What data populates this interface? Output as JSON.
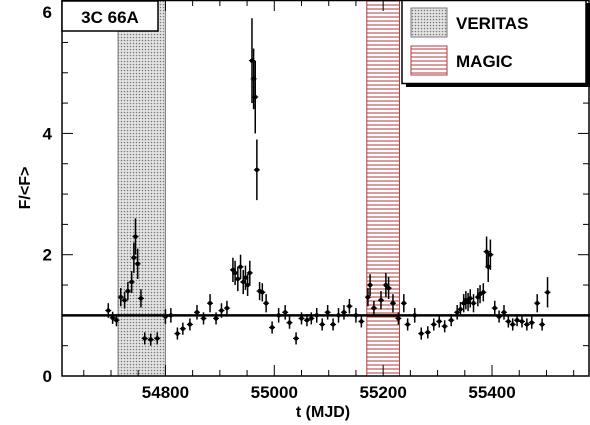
{
  "chart_data": {
    "type": "scatter",
    "source_label": "3C 66A",
    "xlabel": "t (MJD)",
    "ylabel": "F/<F>",
    "xlim": [
      54610,
      55580
    ],
    "ylim": [
      0,
      6.2
    ],
    "x_ticks": [
      54800,
      55000,
      55200,
      55400
    ],
    "y_ticks": [
      0,
      2,
      4,
      6
    ],
    "reference_line": 1.0,
    "grid": false,
    "legend_placement": "top-right",
    "bands": [
      {
        "name": "VERITAS",
        "x_range": [
          54713,
          54800
        ],
        "fill": "dotted-gray",
        "color": "#7a7a7a"
      },
      {
        "name": "MAGIC",
        "x_range": [
          55170,
          55230
        ],
        "fill": "horizontal-hatch",
        "color": "#b23a3a"
      }
    ],
    "points": [
      [
        54695,
        1.08,
        0.12
      ],
      [
        54703,
        0.96,
        0.1
      ],
      [
        54710,
        0.92,
        0.1
      ],
      [
        54718,
        1.3,
        0.15
      ],
      [
        54725,
        1.25,
        0.14
      ],
      [
        54731,
        1.4,
        0.15
      ],
      [
        54738,
        1.55,
        0.18
      ],
      [
        54742,
        1.95,
        0.25
      ],
      [
        54745,
        2.3,
        0.3
      ],
      [
        54749,
        1.85,
        0.25
      ],
      [
        54755,
        1.28,
        0.15
      ],
      [
        54762,
        0.62,
        0.1
      ],
      [
        54773,
        0.6,
        0.1
      ],
      [
        54785,
        0.62,
        0.1
      ],
      [
        54800,
        0.98,
        0.12
      ],
      [
        54810,
        1.0,
        0.12
      ],
      [
        54822,
        0.7,
        0.1
      ],
      [
        54832,
        0.78,
        0.1
      ],
      [
        54845,
        0.85,
        0.1
      ],
      [
        54858,
        1.05,
        0.12
      ],
      [
        54870,
        0.95,
        0.1
      ],
      [
        54882,
        1.2,
        0.15
      ],
      [
        54893,
        0.95,
        0.1
      ],
      [
        54903,
        1.08,
        0.12
      ],
      [
        54913,
        1.12,
        0.12
      ],
      [
        54924,
        1.75,
        0.2
      ],
      [
        54928,
        1.7,
        0.2
      ],
      [
        54933,
        1.6,
        0.2
      ],
      [
        54938,
        1.8,
        0.2
      ],
      [
        54943,
        1.55,
        0.2
      ],
      [
        54947,
        1.62,
        0.2
      ],
      [
        54951,
        1.5,
        0.18
      ],
      [
        54955,
        1.7,
        0.2
      ],
      [
        54959,
        5.2,
        0.7
      ],
      [
        54962,
        4.9,
        0.5
      ],
      [
        54965,
        4.6,
        0.6
      ],
      [
        54968,
        3.4,
        0.5
      ],
      [
        54973,
        1.4,
        0.15
      ],
      [
        54978,
        1.38,
        0.15
      ],
      [
        54985,
        1.2,
        0.15
      ],
      [
        54996,
        0.8,
        0.1
      ],
      [
        55008,
        1.0,
        0.12
      ],
      [
        55020,
        1.05,
        0.12
      ],
      [
        55028,
        0.88,
        0.1
      ],
      [
        55040,
        0.62,
        0.1
      ],
      [
        55050,
        0.95,
        0.1
      ],
      [
        55060,
        0.92,
        0.1
      ],
      [
        55068,
        0.95,
        0.1
      ],
      [
        55078,
        1.0,
        0.12
      ],
      [
        55088,
        0.85,
        0.1
      ],
      [
        55098,
        1.05,
        0.12
      ],
      [
        55108,
        0.85,
        0.1
      ],
      [
        55118,
        1.0,
        0.12
      ],
      [
        55128,
        1.05,
        0.12
      ],
      [
        55138,
        1.15,
        0.12
      ],
      [
        55150,
        1.0,
        0.12
      ],
      [
        55160,
        0.9,
        0.1
      ],
      [
        55172,
        1.3,
        0.15
      ],
      [
        55176,
        1.5,
        0.18
      ],
      [
        55183,
        1.12,
        0.12
      ],
      [
        55196,
        1.25,
        0.15
      ],
      [
        55205,
        1.5,
        0.2
      ],
      [
        55210,
        1.45,
        0.18
      ],
      [
        55218,
        1.2,
        0.15
      ],
      [
        55228,
        0.95,
        0.1
      ],
      [
        55238,
        1.2,
        0.15
      ],
      [
        55245,
        0.85,
        0.1
      ],
      [
        55258,
        1.0,
        0.12
      ],
      [
        55270,
        0.7,
        0.1
      ],
      [
        55282,
        0.72,
        0.1
      ],
      [
        55293,
        0.85,
        0.1
      ],
      [
        55303,
        0.9,
        0.1
      ],
      [
        55313,
        0.82,
        0.1
      ],
      [
        55325,
        0.92,
        0.1
      ],
      [
        55336,
        1.05,
        0.12
      ],
      [
        55342,
        1.1,
        0.12
      ],
      [
        55348,
        1.2,
        0.15
      ],
      [
        55352,
        1.25,
        0.15
      ],
      [
        55356,
        1.22,
        0.15
      ],
      [
        55360,
        1.28,
        0.15
      ],
      [
        55366,
        1.2,
        0.15
      ],
      [
        55374,
        1.3,
        0.15
      ],
      [
        55378,
        1.35,
        0.15
      ],
      [
        55384,
        1.38,
        0.15
      ],
      [
        55390,
        2.05,
        0.25
      ],
      [
        55393,
        1.8,
        0.25
      ],
      [
        55397,
        2.0,
        0.25
      ],
      [
        55405,
        1.12,
        0.12
      ],
      [
        55413,
        0.98,
        0.1
      ],
      [
        55422,
        1.05,
        0.12
      ],
      [
        55430,
        0.9,
        0.1
      ],
      [
        55438,
        0.85,
        0.1
      ],
      [
        55446,
        0.92,
        0.1
      ],
      [
        55455,
        0.9,
        0.1
      ],
      [
        55464,
        0.85,
        0.1
      ],
      [
        55473,
        0.88,
        0.1
      ],
      [
        55483,
        1.2,
        0.15
      ],
      [
        55492,
        0.85,
        0.1
      ],
      [
        55502,
        1.38,
        0.25
      ]
    ]
  }
}
